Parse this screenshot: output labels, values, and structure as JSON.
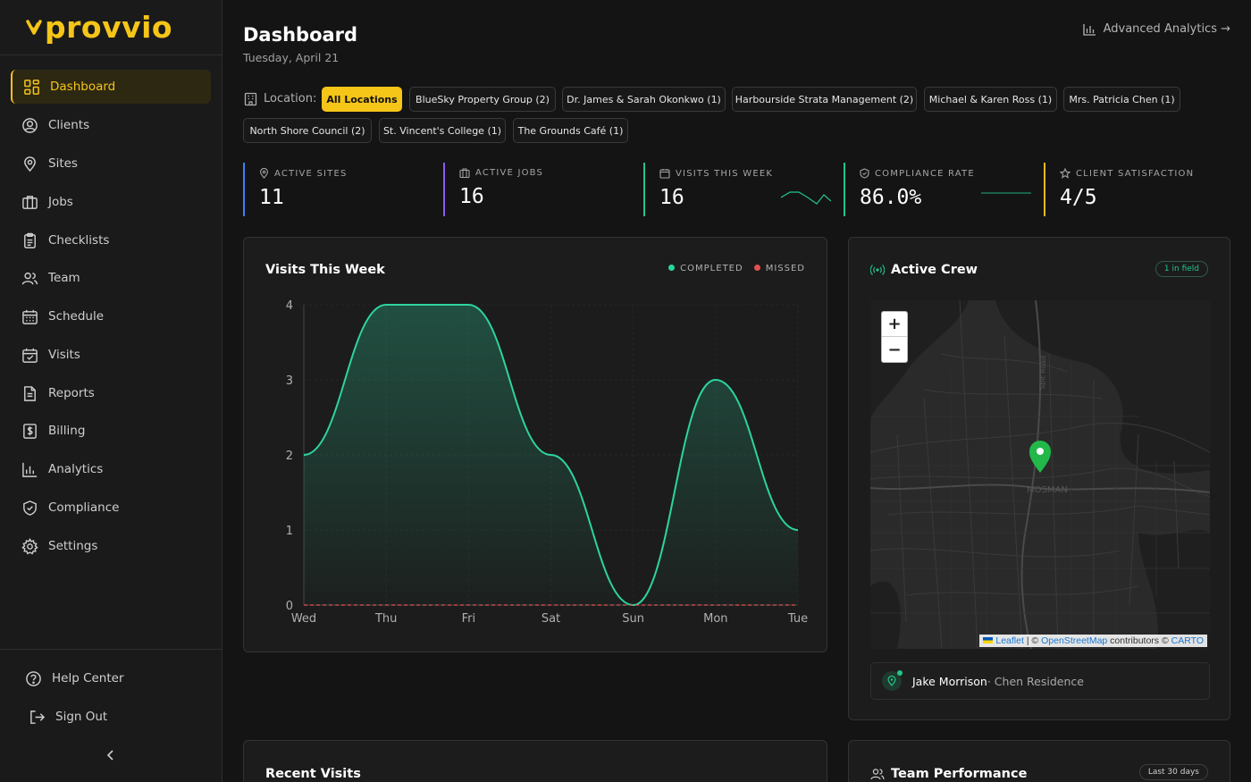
{
  "brand": {
    "name": "provvio",
    "accent": "#f5c518"
  },
  "sidebar": {
    "items": [
      {
        "label": "Dashboard",
        "icon": "grid-icon"
      },
      {
        "label": "Clients",
        "icon": "user-circle-icon"
      },
      {
        "label": "Sites",
        "icon": "map-pin-icon"
      },
      {
        "label": "Jobs",
        "icon": "briefcase-icon"
      },
      {
        "label": "Checklists",
        "icon": "clipboard-icon"
      },
      {
        "label": "Team",
        "icon": "users-icon"
      },
      {
        "label": "Schedule",
        "icon": "calendar-icon"
      },
      {
        "label": "Visits",
        "icon": "calendar-check-icon"
      },
      {
        "label": "Reports",
        "icon": "document-icon"
      },
      {
        "label": "Billing",
        "icon": "dollar-receipt-icon"
      },
      {
        "label": "Analytics",
        "icon": "bar-chart-icon"
      },
      {
        "label": "Compliance",
        "icon": "shield-check-icon"
      },
      {
        "label": "Settings",
        "icon": "gear-icon"
      }
    ],
    "help": "Help Center",
    "signout": "Sign Out"
  },
  "header": {
    "title": "Dashboard",
    "date": "Tuesday, April 21",
    "advanced": "Advanced Analytics →"
  },
  "locations": {
    "label": "Location:",
    "chips": [
      "All Locations",
      "BlueSky Property Group (2)",
      "Dr. James & Sarah Okonkwo (1)",
      "Harbourside Strata Management (2)",
      "Michael & Karen Ross (1)",
      "Mrs. Patricia Chen (1)",
      "North Shore Council (2)",
      "St. Vincent's College (1)",
      "The Grounds Café (1)"
    ]
  },
  "stats": [
    {
      "label": "ACTIVE SITES",
      "value": "11",
      "color": "#3b82f6"
    },
    {
      "label": "ACTIVE JOBS",
      "value": "16",
      "color": "#8b5cf6"
    },
    {
      "label": "VISITS THIS WEEK",
      "value": "16",
      "color": "#22c58b"
    },
    {
      "label": "COMPLIANCE RATE",
      "value": "86.0%",
      "color": "#22c58b"
    },
    {
      "label": "CLIENT SATISFACTION",
      "value": "4/5",
      "color": "#f5b918"
    }
  ],
  "visits_card": {
    "title": "Visits This Week",
    "legend_completed": "COMPLETED",
    "legend_missed": "MISSED"
  },
  "chart_data": {
    "type": "area",
    "title": "Visits This Week",
    "categories": [
      "Wed",
      "Thu",
      "Fri",
      "Sat",
      "Sun",
      "Mon",
      "Tue"
    ],
    "series": [
      {
        "name": "COMPLETED",
        "values": [
          2,
          4,
          4,
          2,
          0,
          3,
          1
        ],
        "color": "#2dd4a0"
      },
      {
        "name": "MISSED",
        "values": [
          0,
          0,
          0,
          0,
          0,
          0,
          0
        ],
        "color": "#e05252"
      }
    ],
    "yticks": [
      0,
      1,
      2,
      3,
      4
    ],
    "ylim": [
      0,
      4
    ]
  },
  "crew_card": {
    "title": "Active Crew",
    "badge": "1 in field",
    "zoom_in": "+",
    "zoom_out": "−",
    "map_label": "MOSMAN",
    "road_label": "Spit Road",
    "attrib_leaflet": "Leaflet",
    "attrib_sep": " | © ",
    "attrib_osm": "OpenStreetMap",
    "attrib_contrib": " contributors © ",
    "attrib_carto": "CARTO",
    "member_name": "Jake Morrison",
    "member_site": " · Chen Residence"
  },
  "recent_card": {
    "title": "Recent Visits"
  },
  "team_card": {
    "title": "Team Performance",
    "badge": "Last 30 days"
  }
}
